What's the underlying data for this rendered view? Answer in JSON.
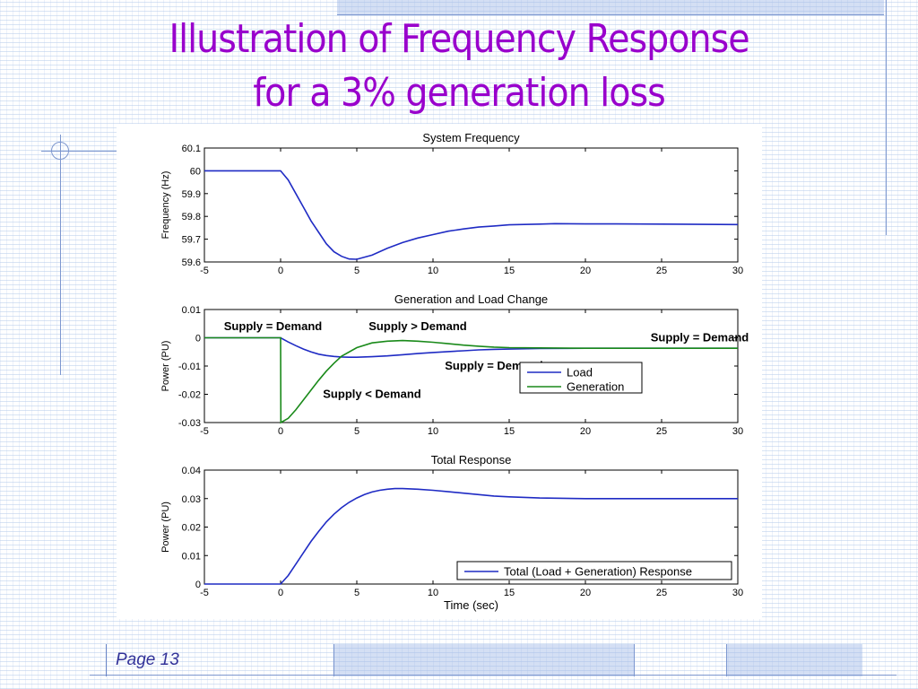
{
  "slide": {
    "title_line1": "Illustration of Frequency Response",
    "title_line2": "for a 3% generation loss",
    "page_label": "Page 13"
  },
  "colors": {
    "title": "#9900cc",
    "load": "#1f2bc4",
    "generation": "#1a8a1a",
    "total": "#1f2bc4",
    "page_label": "#333399"
  },
  "chart_data": [
    {
      "type": "line",
      "title": "System Frequency",
      "xlabel": "",
      "ylabel": "Frequency (Hz)",
      "xlim": [
        -5,
        30
      ],
      "ylim": [
        59.6,
        60.1
      ],
      "xticks": [
        "-5",
        "0",
        "5",
        "10",
        "15",
        "20",
        "25",
        "30"
      ],
      "yticks": [
        "60.1",
        "60",
        "59.9",
        "59.8",
        "59.7",
        "59.6"
      ],
      "series": [
        {
          "name": "",
          "color": "#1f2bc4",
          "x": [
            -5,
            0,
            0.5,
            1,
            1.5,
            2,
            2.5,
            3,
            3.5,
            4,
            4.5,
            5,
            6,
            7,
            8,
            9,
            10,
            11,
            12,
            13,
            14,
            15,
            17,
            18,
            20,
            22,
            25,
            30
          ],
          "y": [
            60.0,
            60.0,
            59.96,
            59.9,
            59.84,
            59.78,
            59.73,
            59.68,
            59.645,
            59.625,
            59.613,
            59.612,
            59.63,
            59.66,
            59.685,
            59.705,
            59.72,
            59.735,
            59.745,
            59.753,
            59.758,
            59.763,
            59.766,
            59.768,
            59.767,
            59.767,
            59.766,
            59.764
          ]
        }
      ]
    },
    {
      "type": "line",
      "title": "Generation and Load Change",
      "xlabel": "",
      "ylabel": "Power (PU)",
      "xlim": [
        -5,
        30
      ],
      "ylim": [
        -0.03,
        0.01
      ],
      "xticks": [
        "-5",
        "0",
        "5",
        "10",
        "15",
        "20",
        "25",
        "30"
      ],
      "yticks": [
        "0.01",
        "0",
        "-0.01",
        "-0.02",
        "-0.03"
      ],
      "legend_position": "center-right",
      "series": [
        {
          "name": "Load",
          "color": "#1f2bc4",
          "x": [
            -5,
            0,
            0.5,
            1,
            1.5,
            2,
            2.5,
            3,
            3.5,
            4,
            4.5,
            5,
            6,
            7,
            8,
            9,
            10,
            11,
            12,
            13,
            14,
            15,
            17,
            20,
            25,
            30
          ],
          "y": [
            0,
            0,
            -0.0015,
            -0.0028,
            -0.004,
            -0.005,
            -0.0058,
            -0.0063,
            -0.0066,
            -0.0068,
            -0.0069,
            -0.0069,
            -0.0067,
            -0.0064,
            -0.006,
            -0.0056,
            -0.0052,
            -0.0049,
            -0.0046,
            -0.0043,
            -0.0041,
            -0.004,
            -0.0038,
            -0.0037,
            -0.0037,
            -0.0037
          ]
        },
        {
          "name": "Generation",
          "color": "#1a8a1a",
          "x": [
            -5,
            0,
            0.02,
            0.5,
            1,
            1.5,
            2,
            2.5,
            3,
            3.5,
            4,
            5,
            6,
            7,
            8,
            9,
            10,
            11,
            12,
            13,
            14,
            15,
            17,
            20,
            25,
            30
          ],
          "y": [
            0,
            0,
            -0.03,
            -0.0285,
            -0.0255,
            -0.022,
            -0.0185,
            -0.015,
            -0.0118,
            -0.009,
            -0.0065,
            -0.0035,
            -0.0018,
            -0.0012,
            -0.001,
            -0.0012,
            -0.0016,
            -0.0021,
            -0.0026,
            -0.003,
            -0.0033,
            -0.0035,
            -0.0036,
            -0.0037,
            -0.0037,
            -0.0037
          ]
        }
      ],
      "annotations": [
        {
          "text": "Supply = Demand",
          "x": -0.5,
          "y": 0.004
        },
        {
          "text": "Supply > Demand",
          "x": 9,
          "y": 0.004
        },
        {
          "text": "Supply = Demand",
          "x": 27.5,
          "y": 0.0
        },
        {
          "text": "Supply = Demand",
          "x": 14,
          "y": -0.01
        },
        {
          "text": "Supply < Demand",
          "x": 6,
          "y": -0.02
        }
      ]
    },
    {
      "type": "line",
      "title": "Total Response",
      "xlabel": "Time (sec)",
      "ylabel": "Power (PU)",
      "xlim": [
        -5,
        30
      ],
      "ylim": [
        0,
        0.04
      ],
      "xticks": [
        "-5",
        "0",
        "5",
        "10",
        "15",
        "20",
        "25",
        "30"
      ],
      "yticks": [
        "0.04",
        "0.03",
        "0.02",
        "0.01",
        "0"
      ],
      "legend_position": "bottom-right",
      "series": [
        {
          "name": "Total (Load + Generation) Response",
          "color": "#1f2bc4",
          "x": [
            -5,
            0,
            0.5,
            1,
            1.5,
            2,
            2.5,
            3,
            3.5,
            4,
            4.5,
            5,
            5.5,
            6,
            6.5,
            7,
            7.5,
            8,
            9,
            10,
            11,
            12,
            13,
            14,
            15,
            17,
            20,
            25,
            30
          ],
          "y": [
            0,
            0,
            0.003,
            0.007,
            0.011,
            0.015,
            0.0185,
            0.0218,
            0.0245,
            0.0268,
            0.0287,
            0.0302,
            0.0314,
            0.0323,
            0.0329,
            0.0333,
            0.0335,
            0.0335,
            0.0333,
            0.0329,
            0.0324,
            0.0319,
            0.0314,
            0.0309,
            0.0306,
            0.0302,
            0.03,
            0.03,
            0.03
          ]
        }
      ]
    }
  ]
}
